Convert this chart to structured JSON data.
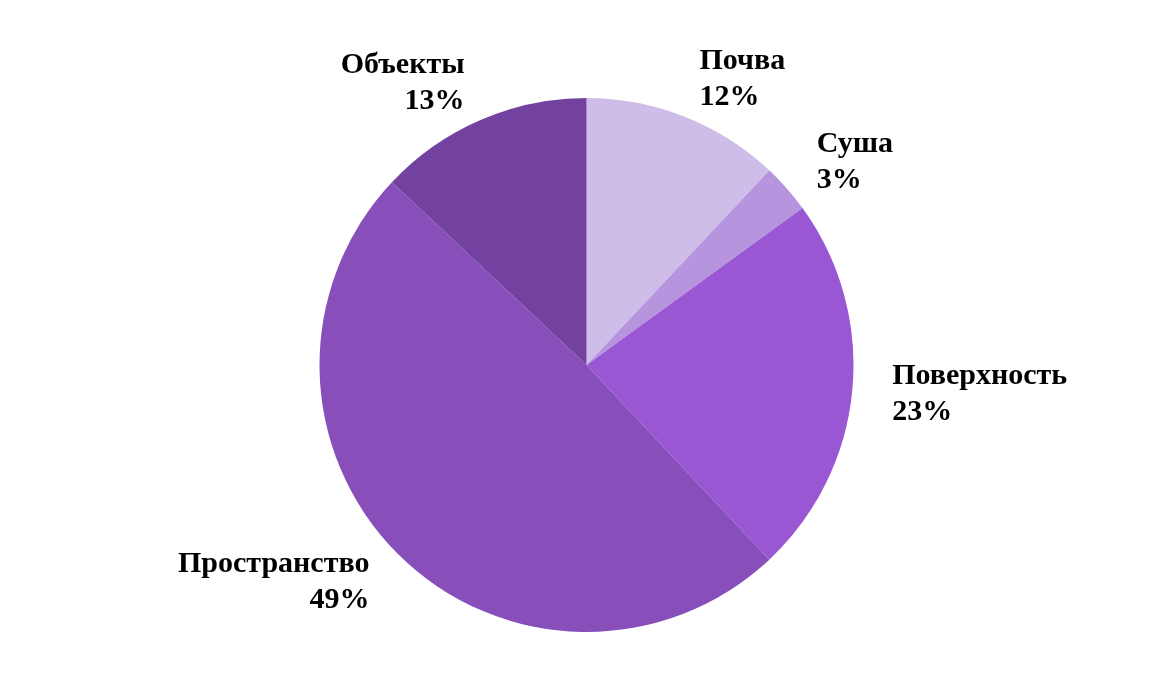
{
  "chart_data": {
    "type": "pie",
    "categories": [
      "Почва",
      "Суша",
      "Поверхность",
      "Пространство",
      "Объекты"
    ],
    "values": [
      12,
      3,
      23,
      49,
      13
    ],
    "colors": [
      "#cfbde9",
      "#b795de",
      "#9a57d3",
      "#884fbb",
      "#7341a0"
    ],
    "value_labels": [
      "12%",
      "3%",
      "23%",
      "49%",
      "13%"
    ],
    "legend": false
  }
}
